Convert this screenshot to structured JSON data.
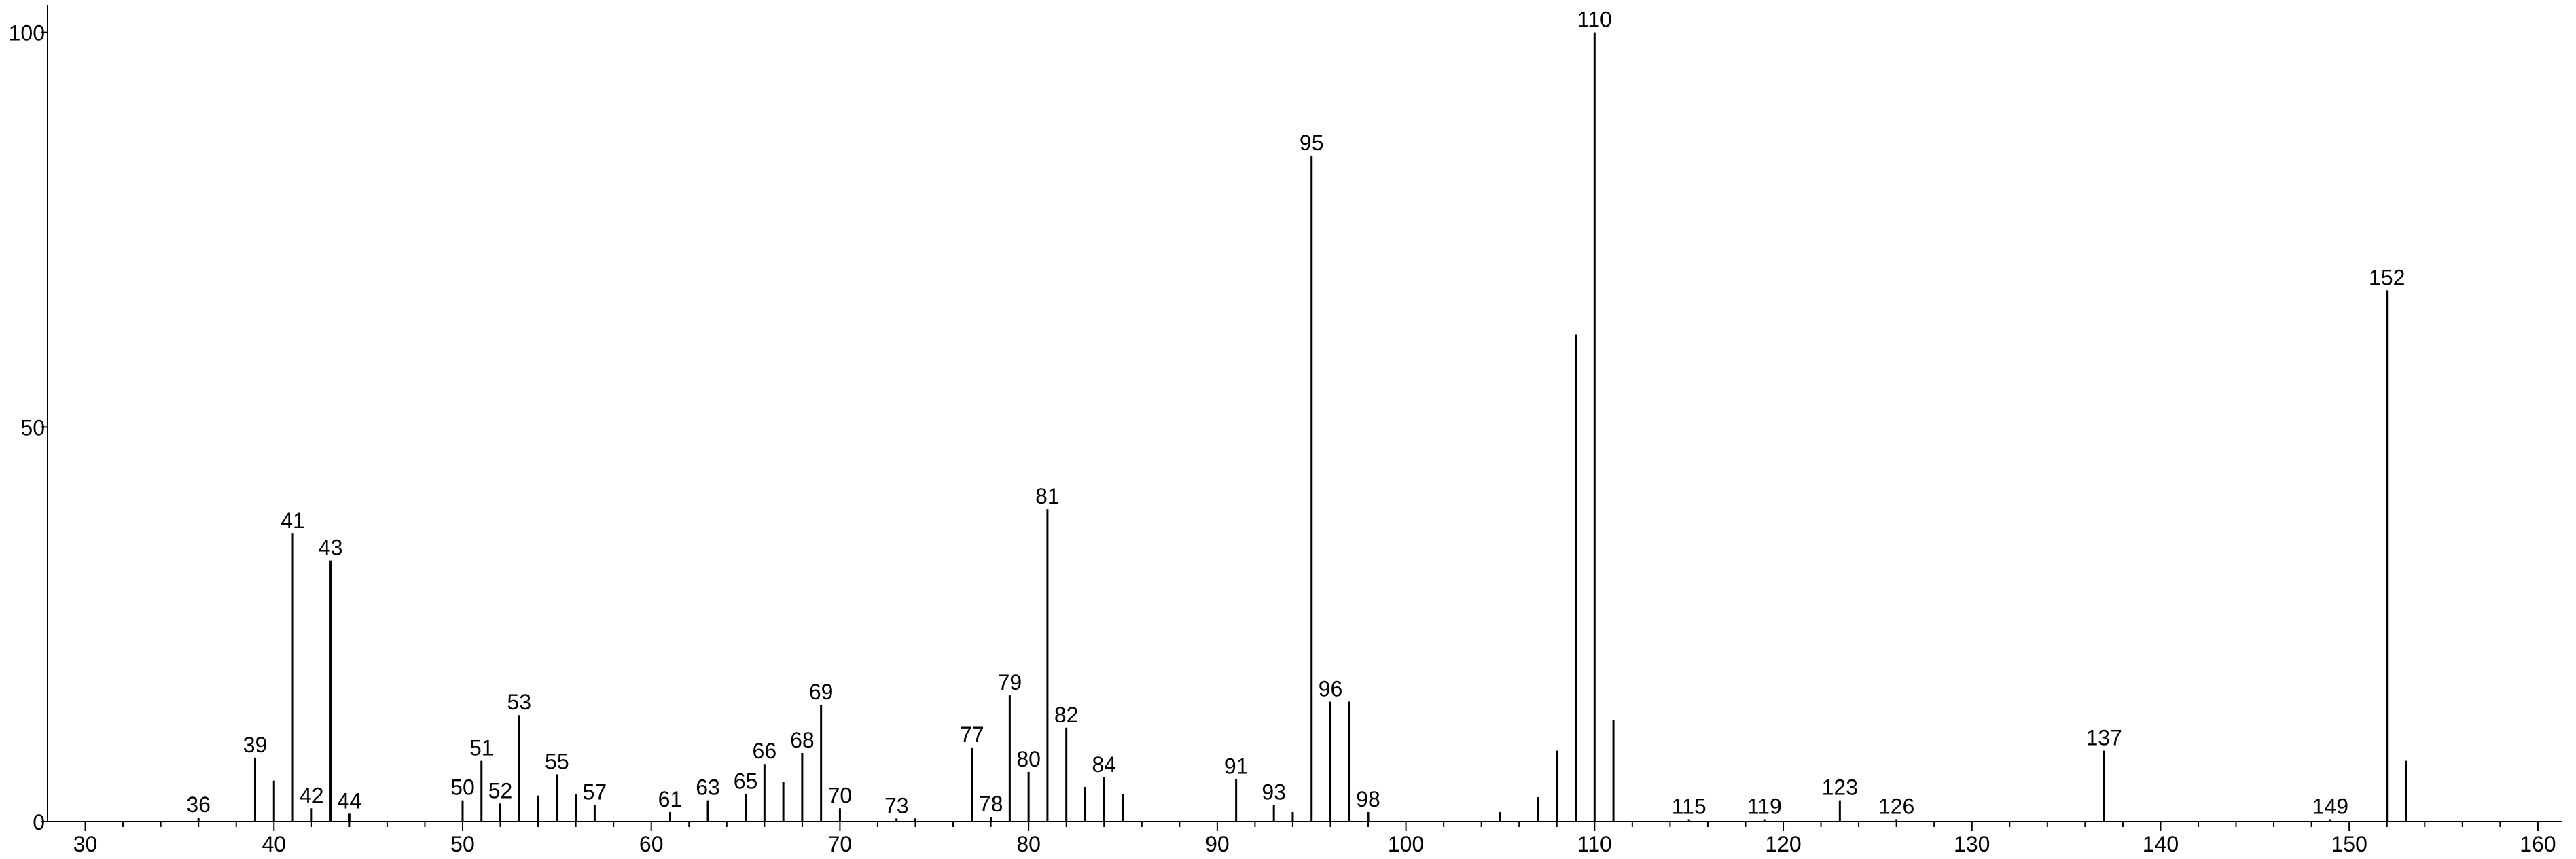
{
  "chart_data": {
    "type": "stem",
    "x": [
      36,
      39,
      40,
      41,
      42,
      43,
      44,
      50,
      51,
      52,
      53,
      54,
      55,
      56,
      57,
      61,
      63,
      65,
      66,
      67,
      68,
      69,
      70,
      73,
      74,
      77,
      78,
      79,
      80,
      81,
      82,
      83,
      84,
      85,
      91,
      93,
      94,
      95,
      96,
      97,
      98,
      105,
      107,
      108,
      109,
      110,
      111,
      115,
      119,
      123,
      126,
      137,
      149,
      152,
      153
    ],
    "values": [
      0.5,
      8.1,
      5.2,
      36.5,
      1.7,
      33.1,
      1,
      2.7,
      7.7,
      2.3,
      13.5,
      3.3,
      6,
      3.5,
      2.1,
      1.2,
      2.7,
      3.5,
      7.3,
      5,
      8.7,
      14.8,
      1.7,
      0.4,
      0.4,
      9.4,
      0.6,
      16,
      6.3,
      39.6,
      11.9,
      4.4,
      5.6,
      3.5,
      5.4,
      2.1,
      1.2,
      84.4,
      15.2,
      15.2,
      1.2,
      1.2,
      3.1,
      9,
      61.7,
      100,
      12.9,
      0.3,
      0.3,
      2.7,
      0.3,
      9,
      0.3,
      67.3,
      7.7
    ],
    "labels": [
      "36",
      "39",
      null,
      "41",
      "42",
      "43",
      "44",
      "50",
      "51",
      "52",
      "53",
      null,
      "55",
      null,
      "57",
      "61",
      "63",
      "65",
      "66",
      null,
      "68",
      "69",
      "70",
      "73",
      null,
      "77",
      "78",
      "79",
      "80",
      "81",
      "82",
      null,
      "84",
      null,
      "91",
      "93",
      null,
      "95",
      "96",
      null,
      "98",
      null,
      null,
      null,
      null,
      "110",
      null,
      "115",
      "119",
      "123",
      "126",
      "137",
      "149",
      "152",
      null
    ],
    "color": "#000000",
    "xlim": [
      28,
      161.3
    ],
    "ylim": [
      0,
      103.5
    ],
    "xticks": [
      30,
      40,
      50,
      60,
      70,
      80,
      90,
      100,
      110,
      120,
      130,
      140,
      150,
      160
    ],
    "xminorticks": [
      32,
      34,
      36,
      38,
      42,
      44,
      46,
      48,
      52,
      54,
      56,
      58,
      62,
      64,
      66,
      68,
      72,
      74,
      76,
      78,
      82,
      84,
      86,
      88,
      92,
      94,
      96,
      98,
      102,
      104,
      106,
      108,
      112,
      114,
      116,
      118,
      122,
      124,
      126,
      128,
      132,
      134,
      136,
      138,
      142,
      144,
      146,
      148,
      152,
      154,
      156,
      158
    ],
    "yticks": [
      0,
      50,
      100
    ]
  }
}
